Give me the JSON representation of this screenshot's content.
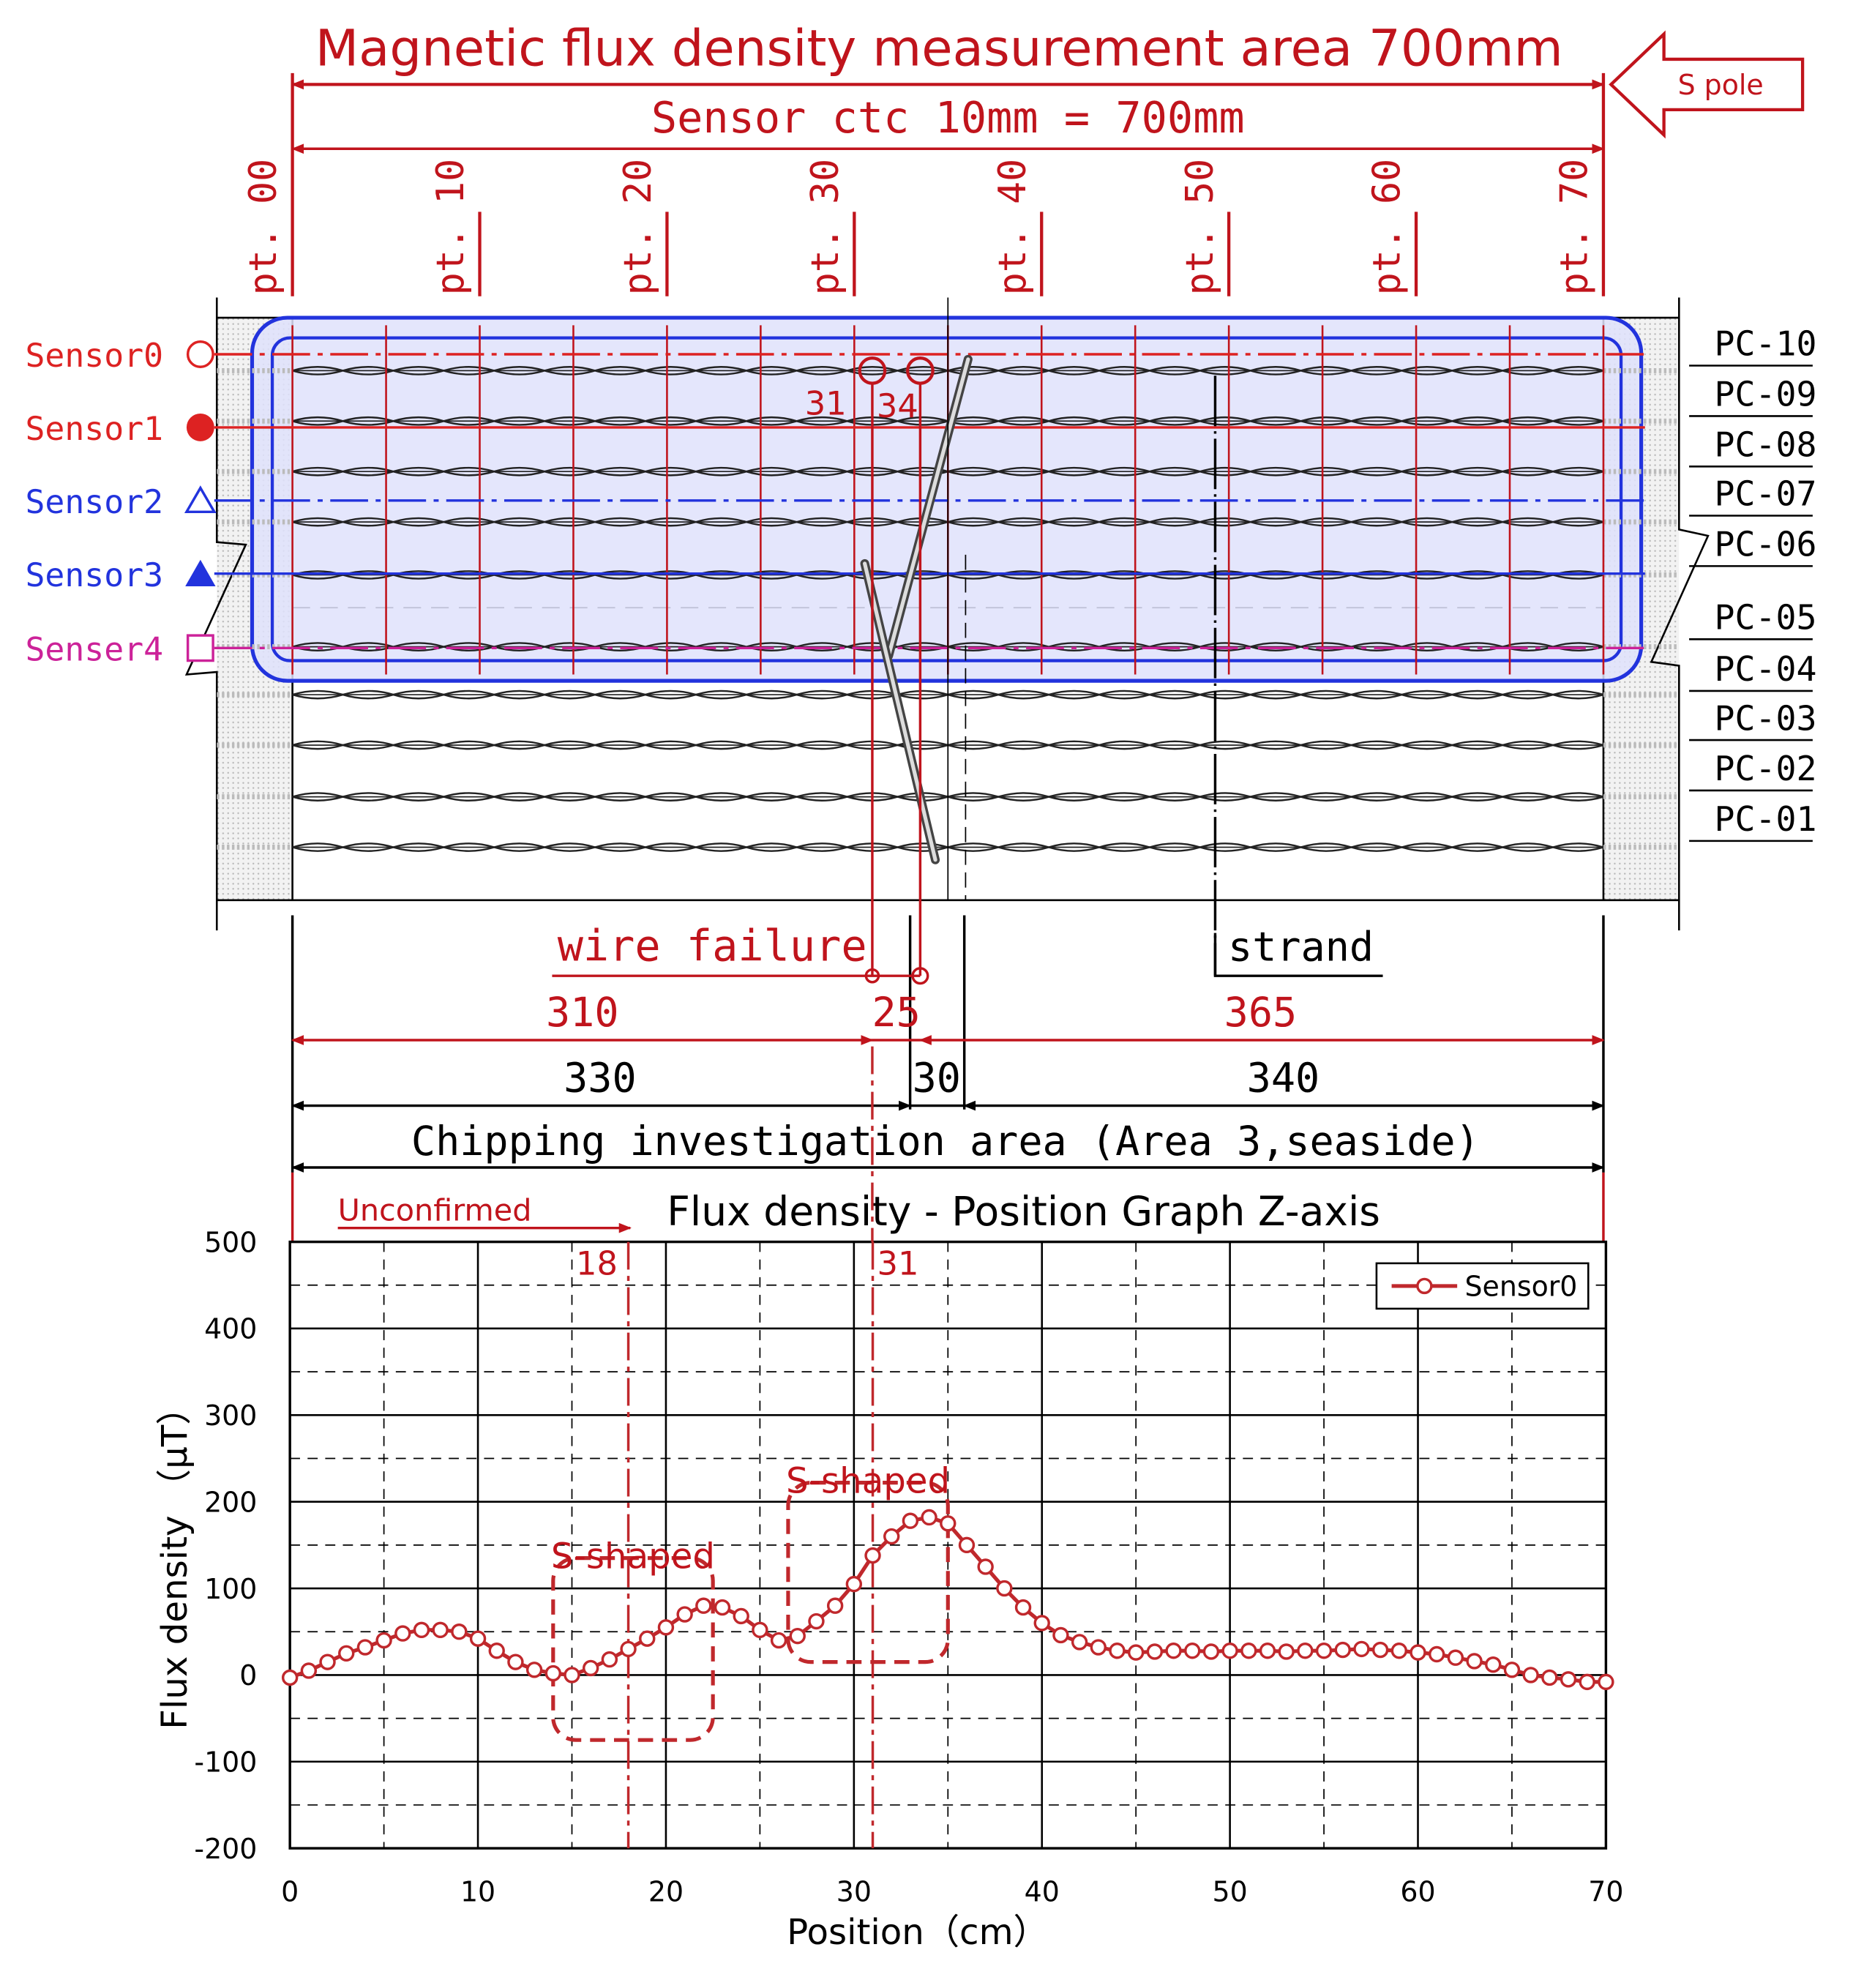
{
  "header": {
    "title": "Magnetic flux density measurement area 700mm",
    "sensor_ctc": "Sensor ctc 10mm = 700mm",
    "pole_label": "S pole",
    "point_labels": [
      "pt. 00",
      "pt. 10",
      "pt. 20",
      "pt. 30",
      "pt. 40",
      "pt. 50",
      "pt. 60",
      "pt. 70"
    ]
  },
  "sensors": [
    {
      "label": "Sensor0",
      "symbol": "circle-open",
      "color": "#dd2222"
    },
    {
      "label": "Sensor1",
      "symbol": "circle-filled",
      "color": "#dd2222"
    },
    {
      "label": "Sensor2",
      "symbol": "triangle-open",
      "color": "#2233dd"
    },
    {
      "label": "Sensor3",
      "symbol": "triangle-filled",
      "color": "#2233dd"
    },
    {
      "label": "Senser4",
      "symbol": "square-open",
      "color": "#cc2299"
    }
  ],
  "strands": [
    "PC-10",
    "PC-09",
    "PC-08",
    "PC-07",
    "PC-06",
    "PC-05",
    "PC-04",
    "PC-03",
    "PC-02",
    "PC-01"
  ],
  "annotations": {
    "break_a": "31",
    "break_b": "34",
    "wire_failure": "wire failure",
    "strand": "strand",
    "dim_red": [
      "310",
      "25",
      "365"
    ],
    "dim_black": [
      "330",
      "30",
      "340"
    ],
    "chipping": "Chipping investigation area (Area 3,seaside)",
    "unconfirmed": "Unconfirmed"
  },
  "colors": {
    "red": "#c0141c",
    "line_red": "#c0282c",
    "blue": "#2233dd",
    "magenta": "#cc2299",
    "sensor_box_fill": "#dfe2fb"
  },
  "chart_data": {
    "type": "line",
    "title": "Flux density - Position Graph  Z-axis",
    "xlabel": "Position（cm）",
    "ylabel": "Flux density （μT）",
    "xlim": [
      0,
      70
    ],
    "ylim": [
      -200,
      500
    ],
    "xticks": [
      0,
      10,
      20,
      30,
      40,
      50,
      60,
      70
    ],
    "yticks": [
      -200,
      -100,
      0,
      100,
      200,
      300,
      400,
      500
    ],
    "grid": true,
    "legend_position": "top-right",
    "series": [
      {
        "name": "Sensor0",
        "color": "#c0282c",
        "marker": "open-circle",
        "x": [
          0,
          1,
          2,
          3,
          4,
          5,
          6,
          7,
          8,
          9,
          10,
          11,
          12,
          13,
          14,
          15,
          16,
          17,
          18,
          19,
          20,
          21,
          22,
          23,
          24,
          25,
          26,
          27,
          28,
          29,
          30,
          31,
          32,
          33,
          34,
          35,
          36,
          37,
          38,
          39,
          40,
          41,
          42,
          43,
          44,
          45,
          46,
          47,
          48,
          49,
          50,
          51,
          52,
          53,
          54,
          55,
          56,
          57,
          58,
          59,
          60,
          61,
          62,
          63,
          64,
          65,
          66,
          67,
          68,
          69,
          70
        ],
        "values": [
          -3,
          5,
          15,
          25,
          32,
          40,
          48,
          52,
          52,
          50,
          42,
          28,
          15,
          6,
          2,
          0,
          8,
          18,
          30,
          42,
          55,
          70,
          80,
          78,
          68,
          52,
          40,
          45,
          62,
          80,
          105,
          138,
          160,
          178,
          182,
          175,
          150,
          125,
          100,
          78,
          60,
          46,
          38,
          32,
          28,
          26,
          27,
          28,
          28,
          27,
          28,
          28,
          28,
          27,
          28,
          28,
          29,
          30,
          29,
          28,
          26,
          24,
          20,
          16,
          12,
          6,
          0,
          -3,
          -5,
          -8,
          -8
        ]
      }
    ],
    "annotations": [
      {
        "label": "S-shaped",
        "x_range": [
          14,
          22.5
        ],
        "y_range": [
          -75,
          135
        ]
      },
      {
        "label": "S-shaped",
        "x_range": [
          26.5,
          35
        ],
        "y_range": [
          15,
          222
        ]
      },
      {
        "label": "18",
        "x": 18
      },
      {
        "label": "31",
        "x": 31
      }
    ]
  }
}
